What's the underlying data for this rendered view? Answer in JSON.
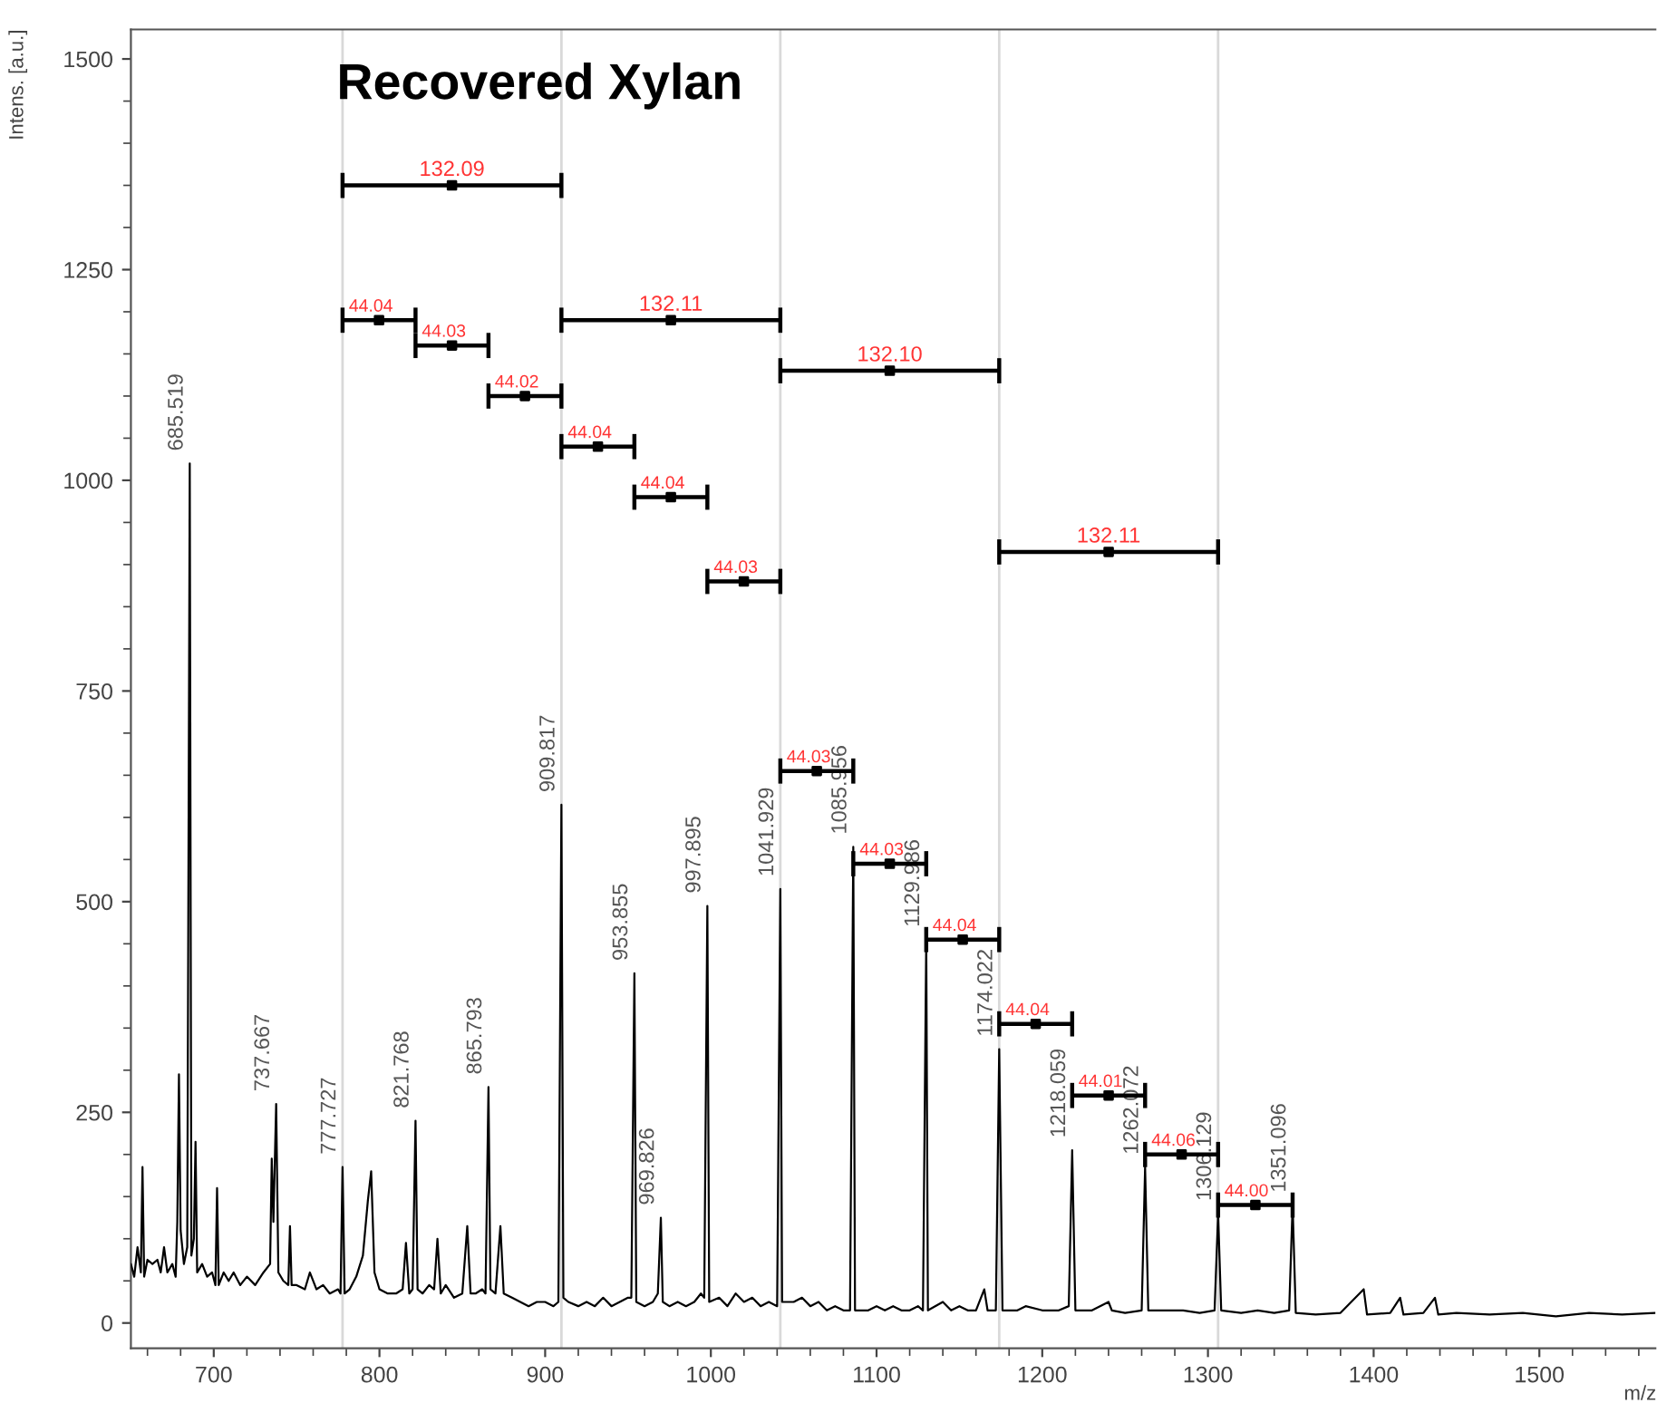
{
  "chart_data": {
    "type": "line",
    "title": "Recovered Xylan",
    "xlabel": "m/z",
    "ylabel": "Intens. [a.u.]",
    "xlim": [
      650,
      1570
    ],
    "ylim": [
      -30,
      1535
    ],
    "xticks": [
      700,
      800,
      900,
      1000,
      1100,
      1200,
      1300,
      1400,
      1500
    ],
    "yticks": [
      0,
      250,
      500,
      750,
      1000,
      1250,
      1500
    ],
    "grid": false,
    "legend": false,
    "marker": "none",
    "line_style": "solid",
    "series": [
      {
        "color": "#000000",
        "x": [
          650,
          652,
          654,
          656,
          657,
          658,
          660,
          663,
          666,
          668,
          670,
          672,
          675,
          677,
          678,
          679,
          680,
          682,
          684,
          685.519,
          686.5,
          688,
          689,
          690,
          693,
          696,
          699,
          701,
          702,
          703,
          706,
          709,
          712,
          716,
          720,
          725,
          730,
          734,
          735,
          736,
          737.667,
          739,
          742,
          745,
          746,
          747,
          750,
          755,
          758,
          762,
          766,
          770,
          775,
          776.5,
          777.727,
          779,
          782,
          786,
          790,
          793,
          795,
          797,
          800,
          805,
          810,
          814,
          816,
          818,
          820,
          821.768,
          823,
          826,
          830,
          833,
          835,
          837,
          840,
          845,
          850,
          853,
          855,
          858,
          862,
          864,
          865.793,
          867,
          870,
          873,
          875,
          880,
          885,
          890,
          895,
          900,
          905,
          908,
          909.817,
          911,
          914,
          920,
          925,
          930,
          935,
          940,
          945,
          950,
          952,
          953.855,
          955,
          960,
          965,
          968,
          969.826,
          971,
          975,
          980,
          985,
          990,
          994,
          996,
          997.895,
          999,
          1005,
          1010,
          1015,
          1020,
          1025,
          1030,
          1035,
          1040,
          1041.929,
          1043,
          1050,
          1055,
          1060,
          1065,
          1070,
          1075,
          1080,
          1084,
          1085.956,
          1087,
          1095,
          1100,
          1105,
          1110,
          1115,
          1120,
          1125,
          1128,
          1129.986,
          1131,
          1140,
          1145,
          1150,
          1155,
          1160,
          1165,
          1167,
          1172,
          1174.022,
          1176,
          1185,
          1190,
          1200,
          1210,
          1216,
          1218.059,
          1220,
          1230,
          1240,
          1242,
          1250,
          1260,
          1262.072,
          1264,
          1275,
          1285,
          1295,
          1304,
          1306.129,
          1308,
          1320,
          1330,
          1340,
          1349,
          1351.096,
          1353,
          1365,
          1380,
          1394,
          1396,
          1410,
          1416,
          1418,
          1430,
          1437,
          1439,
          1450,
          1470,
          1490,
          1510,
          1530,
          1550,
          1570
        ],
        "values": [
          70,
          55,
          90,
          60,
          185,
          55,
          75,
          70,
          75,
          60,
          90,
          60,
          70,
          55,
          120,
          295,
          110,
          70,
          90,
          1020,
          80,
          100,
          215,
          60,
          70,
          55,
          60,
          45,
          160,
          45,
          60,
          50,
          60,
          45,
          55,
          45,
          60,
          70,
          195,
          120,
          260,
          60,
          50,
          45,
          115,
          45,
          45,
          40,
          60,
          40,
          45,
          35,
          40,
          35,
          185,
          35,
          40,
          55,
          80,
          145,
          180,
          60,
          40,
          35,
          35,
          40,
          95,
          35,
          40,
          240,
          40,
          35,
          45,
          40,
          100,
          35,
          45,
          30,
          35,
          115,
          35,
          35,
          40,
          35,
          280,
          40,
          35,
          115,
          35,
          30,
          25,
          20,
          25,
          25,
          20,
          25,
          615,
          30,
          25,
          20,
          25,
          20,
          30,
          20,
          25,
          30,
          30,
          415,
          25,
          20,
          25,
          35,
          125,
          25,
          20,
          25,
          20,
          25,
          35,
          30,
          495,
          25,
          30,
          20,
          35,
          25,
          30,
          20,
          25,
          20,
          515,
          25,
          25,
          30,
          20,
          25,
          15,
          20,
          15,
          15,
          565,
          15,
          15,
          20,
          15,
          20,
          15,
          15,
          20,
          15,
          455,
          15,
          25,
          15,
          20,
          15,
          15,
          40,
          15,
          15,
          325,
          15,
          15,
          20,
          15,
          15,
          20,
          205,
          15,
          15,
          25,
          15,
          12,
          15,
          185,
          15,
          15,
          15,
          12,
          15,
          130,
          15,
          12,
          15,
          12,
          15,
          140,
          12,
          10,
          12,
          40,
          10,
          12,
          30,
          10,
          12,
          30,
          10,
          12,
          10,
          12,
          8,
          12,
          10,
          12
        ],
        "name": null
      },
      {
        "type": "scatter",
        "marker": "square",
        "color": "#000000",
        "x": [
          843.772,
          975.873,
          1107.976,
          1240.076,
          799.748,
          843.781,
          887.805,
          931.836,
          975.875,
          1019.912,
          1063.943,
          1107.971,
          1152.004,
          1196.041,
          1240.066,
          1284.101,
          1328.613
        ],
        "values": [
          1350,
          1190,
          1130,
          915,
          1190,
          1160,
          1100,
          1040,
          980,
          880,
          655,
          545,
          455,
          355,
          270,
          200,
          140
        ],
        "xerrors": [
          [
            777.727,
            909.817
          ],
          [
            909.817,
            1041.929
          ],
          [
            1041.929,
            1174.022
          ],
          [
            1174.022,
            1306.129
          ],
          [
            777.727,
            821.768
          ],
          [
            821.768,
            865.793
          ],
          [
            865.793,
            909.817
          ],
          [
            909.817,
            953.855
          ],
          [
            953.855,
            997.895
          ],
          [
            997.895,
            1041.929
          ],
          [
            1041.929,
            1085.956
          ],
          [
            1085.956,
            1129.986
          ],
          [
            1129.986,
            1174.022
          ],
          [
            1174.022,
            1218.059
          ],
          [
            1218.059,
            1262.072
          ],
          [
            1262.072,
            1306.129
          ],
          [
            1306.129,
            1351.096
          ]
        ]
      }
    ],
    "ref_lines": [
      {
        "axis": "x",
        "value": 777.727,
        "color": "#d9d9d9"
      },
      {
        "axis": "x",
        "value": 909.817,
        "color": "#d9d9d9"
      },
      {
        "axis": "x",
        "value": 1041.929,
        "color": "#d9d9d9"
      },
      {
        "axis": "x",
        "value": 1174.022,
        "color": "#d9d9d9"
      },
      {
        "axis": "x",
        "value": 1306.129,
        "color": "#d9d9d9"
      }
    ],
    "annotations": [
      {
        "text": "685.519",
        "x": 685.519,
        "y": 1020
      },
      {
        "text": "737.667",
        "x": 737.667,
        "y": 260
      },
      {
        "text": "777.727",
        "x": 777.727,
        "y": 185
      },
      {
        "text": "821.768",
        "x": 821.768,
        "y": 240
      },
      {
        "text": "865.793",
        "x": 865.793,
        "y": 280
      },
      {
        "text": "909.817",
        "x": 909.817,
        "y": 615
      },
      {
        "text": "953.855",
        "x": 953.855,
        "y": 415
      },
      {
        "text": "969.826",
        "x": 969.826,
        "y": 125
      },
      {
        "text": "997.895",
        "x": 997.895,
        "y": 495
      },
      {
        "text": "1041.929",
        "x": 1041.929,
        "y": 515
      },
      {
        "text": "1085.956",
        "x": 1085.956,
        "y": 565
      },
      {
        "text": "1129.986",
        "x": 1129.986,
        "y": 455
      },
      {
        "text": "1174.022",
        "x": 1174.022,
        "y": 325
      },
      {
        "text": "1218.059",
        "x": 1218.059,
        "y": 205
      },
      {
        "text": "1262.072",
        "x": 1262.072,
        "y": 185
      },
      {
        "text": "1306.129",
        "x": 1306.129,
        "y": 130
      },
      {
        "text": "1351.096",
        "x": 1351.096,
        "y": 140
      },
      {
        "text": "132.09",
        "x": 843.772,
        "y": 1350
      },
      {
        "text": "132.11",
        "x": 975.873,
        "y": 1190
      },
      {
        "text": "132.10",
        "x": 1107.976,
        "y": 1130
      },
      {
        "text": "132.11",
        "x": 1240.076,
        "y": 915
      },
      {
        "text": "44.04",
        "x": 799.748,
        "y": 1190
      },
      {
        "text": "44.03",
        "x": 843.781,
        "y": 1160
      },
      {
        "text": "44.02",
        "x": 887.805,
        "y": 1100
      },
      {
        "text": "44.04",
        "x": 931.836,
        "y": 1040
      },
      {
        "text": "44.04",
        "x": 975.875,
        "y": 980
      },
      {
        "text": "44.03",
        "x": 1019.912,
        "y": 880
      },
      {
        "text": "44.03",
        "x": 1063.943,
        "y": 655
      },
      {
        "text": "44.03",
        "x": 1107.971,
        "y": 545
      },
      {
        "text": "44.04",
        "x": 1152.004,
        "y": 455
      },
      {
        "text": "44.04",
        "x": 1196.041,
        "y": 355
      },
      {
        "text": "44.01",
        "x": 1240.066,
        "y": 270
      },
      {
        "text": "44.06",
        "x": 1284.101,
        "y": 200
      },
      {
        "text": "44.00",
        "x": 1328.613,
        "y": 140
      }
    ]
  }
}
